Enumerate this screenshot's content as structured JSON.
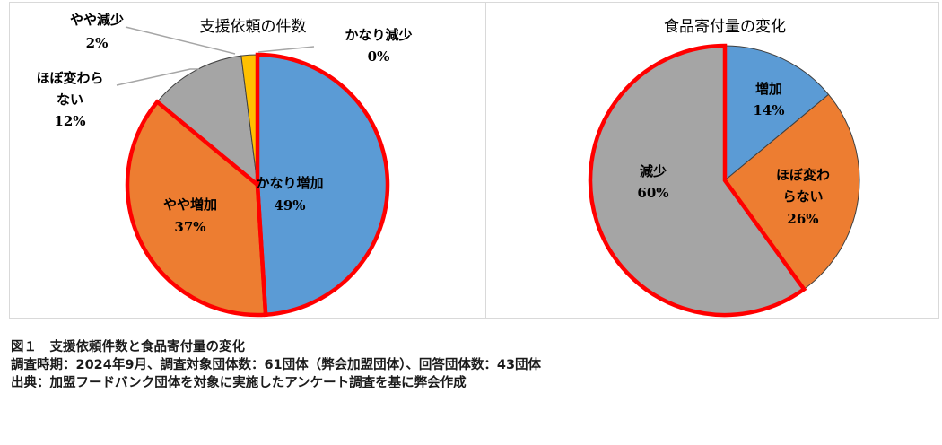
{
  "chart_data": [
    {
      "type": "pie",
      "title": "支援依頼の件数",
      "slices": [
        {
          "label": "かなり増加",
          "value": 49,
          "value_label": "49%",
          "color": "#5b9bd5",
          "highlight": true
        },
        {
          "label": "やや増加",
          "value": 37,
          "value_label": "37%",
          "color": "#ed7d31",
          "highlight": true
        },
        {
          "label": "ほぼ変わらない",
          "label_lines": [
            "ほぼ変わら",
            "ない"
          ],
          "value": 12,
          "value_label": "12%",
          "color": "#a5a5a5",
          "highlight": false
        },
        {
          "label": "やや減少",
          "value": 2,
          "value_label": "2%",
          "color": "#ffc000",
          "highlight": false
        },
        {
          "label": "かなり減少",
          "value": 0,
          "value_label": "0%",
          "color": "#4472c4",
          "highlight": false
        }
      ]
    },
    {
      "type": "pie",
      "title": "食品寄付量の変化",
      "slices": [
        {
          "label": "増加",
          "value": 14,
          "value_label": "14%",
          "color": "#5b9bd5",
          "highlight": false
        },
        {
          "label": "ほぼ変わらない",
          "label_lines": [
            "ほぼ変わ",
            "らない"
          ],
          "value": 26,
          "value_label": "26%",
          "color": "#ed7d31",
          "highlight": false
        },
        {
          "label": "減少",
          "value": 60,
          "value_label": "60%",
          "color": "#a5a5a5",
          "highlight": true
        }
      ]
    }
  ],
  "caption": {
    "line1": "図１　支援依頼件数と食品寄付量の変化",
    "line2": "調査時期：2024年9月、調査対象団体数：61団体（弊会加盟団体）、回答団体数：43団体",
    "line3": "出典：加盟フードバンク団体を対象に実施したアンケート調査を基に弊会作成"
  }
}
